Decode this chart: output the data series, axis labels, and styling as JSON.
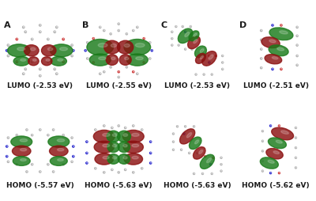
{
  "col_labels": [
    "A",
    "B",
    "C",
    "D"
  ],
  "lumo_labels": [
    "LUMO (-2.53 eV)",
    "LUMO (-2.55 eV)",
    "LUMO (-2.53 eV)",
    "LUMO (-2.51 eV)"
  ],
  "homo_labels": [
    "HOMO (-5.57 eV)",
    "HOMO (-5.63 eV)",
    "HOMO (-5.63 eV)",
    "HOMO (-5.62 eV)"
  ],
  "background_color": "#ffffff",
  "text_color": "#1a1a1a",
  "label_fontsize": 6.5,
  "col_label_fontsize": 8,
  "green_color": "#1a7a1a",
  "red_color": "#8b1010",
  "atom_gray": "#b0b0b0",
  "atom_white": "#e8e8e8",
  "atom_red": "#cc3030",
  "atom_blue": "#2020cc",
  "atom_darkgray": "#808080"
}
